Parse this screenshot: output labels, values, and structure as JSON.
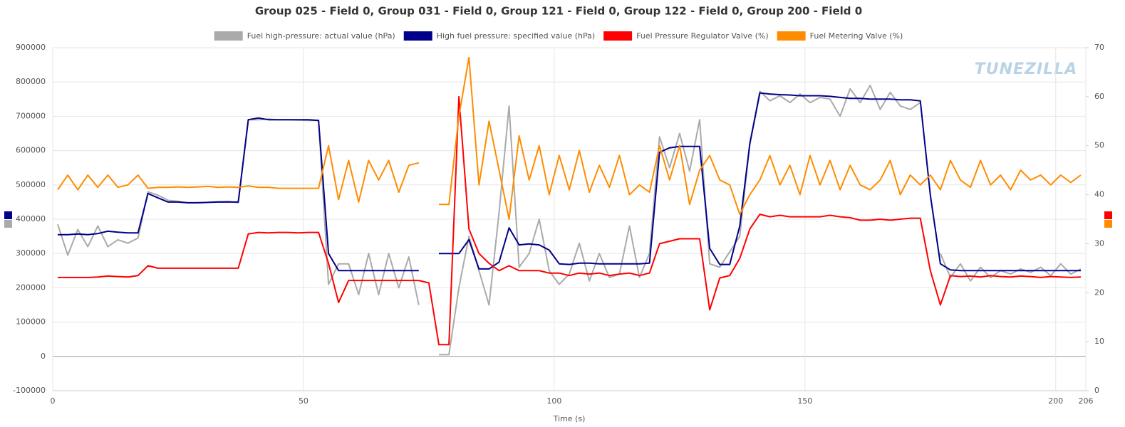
{
  "chart_data": {
    "type": "line",
    "title": "Group 025 - Field 0, Group 031 - Field 0, Group 121 - Field 0, Group 122 - Field 0, Group 200 - Field 0",
    "x_label": "Time (s)",
    "watermark": "TUNEZILLA",
    "xlim": [
      0,
      206
    ],
    "xticks": [
      0,
      50,
      100,
      150,
      200,
      206
    ],
    "ylim": [
      -100000,
      900000
    ],
    "yticks": [
      -100000,
      0,
      100000,
      200000,
      300000,
      400000,
      500000,
      600000,
      700000,
      800000,
      900000
    ],
    "y2lim": [
      0,
      70
    ],
    "y2ticks": [
      0,
      10,
      20,
      30,
      40,
      50,
      60,
      70
    ],
    "grid": true,
    "legend": "top",
    "x": [
      1,
      3,
      5,
      7,
      9,
      11,
      13,
      15,
      17,
      19,
      21,
      23,
      25,
      27,
      29,
      31,
      33,
      35,
      37,
      39,
      41,
      43,
      45,
      47,
      49,
      51,
      53,
      55,
      57,
      59,
      61,
      63,
      65,
      67,
      69,
      71,
      73,
      75,
      77,
      79,
      81,
      83,
      85,
      87,
      89,
      91,
      93,
      95,
      97,
      99,
      101,
      103,
      105,
      107,
      109,
      111,
      113,
      115,
      117,
      119,
      121,
      123,
      125,
      127,
      129,
      131,
      133,
      135,
      137,
      139,
      141,
      143,
      145,
      147,
      149,
      151,
      153,
      155,
      157,
      159,
      161,
      163,
      165,
      167,
      169,
      171,
      173,
      175,
      177,
      179,
      181,
      183,
      185,
      187,
      189,
      191,
      193,
      195,
      197,
      199,
      201,
      203,
      205
    ],
    "series": [
      {
        "name": "Fuel high-pressure: actual value (hPa)",
        "color": "#aaaaaa",
        "axis": "y",
        "values": [
          385000,
          295000,
          370000,
          320000,
          380000,
          320000,
          340000,
          330000,
          345000,
          480000,
          470000,
          455000,
          452000,
          447000,
          448000,
          449000,
          451000,
          452000,
          448000,
          690000,
          690000,
          692000,
          690000,
          690000,
          689000,
          688000,
          688000,
          210000,
          270000,
          270000,
          180000,
          300000,
          180000,
          300000,
          200000,
          290000,
          150000,
          null,
          5000,
          5000,
          200000,
          350000,
          250000,
          150000,
          420000,
          730000,
          260000,
          300000,
          400000,
          250000,
          210000,
          240000,
          330000,
          220000,
          300000,
          230000,
          240000,
          380000,
          230000,
          300000,
          640000,
          550000,
          650000,
          540000,
          690000,
          270000,
          260000,
          305000,
          350000,
          620000,
          773000,
          745000,
          760000,
          740000,
          765000,
          740000,
          755000,
          750000,
          700000,
          780000,
          740000,
          790000,
          720000,
          770000,
          730000,
          720000,
          740000,
          null,
          300000,
          230000,
          270000,
          220000,
          260000,
          230000,
          250000,
          240000,
          255000,
          245000,
          260000,
          235000,
          270000,
          240000,
          255000
        ]
      },
      {
        "name": "High fuel pressure: specified value (hPa)",
        "color": "#00008b",
        "axis": "y",
        "values": [
          355000,
          355000,
          357000,
          355000,
          358000,
          365000,
          362000,
          360000,
          360000,
          475000,
          462000,
          450000,
          450000,
          448000,
          448000,
          449000,
          450000,
          450000,
          450000,
          690000,
          695000,
          690000,
          690000,
          690000,
          690000,
          690000,
          688000,
          300000,
          250000,
          250000,
          250000,
          250000,
          250000,
          250000,
          250000,
          250000,
          250000,
          null,
          300000,
          300000,
          300000,
          340000,
          255000,
          255000,
          275000,
          375000,
          325000,
          328000,
          325000,
          310000,
          270000,
          268000,
          272000,
          272000,
          270000,
          270000,
          270000,
          270000,
          270000,
          272000,
          595000,
          608000,
          612000,
          612000,
          612000,
          315000,
          268000,
          268000,
          380000,
          620000,
          768000,
          765000,
          763000,
          762000,
          760000,
          760000,
          760000,
          758000,
          755000,
          752000,
          752000,
          750000,
          750000,
          750000,
          748000,
          748000,
          745000,
          470000,
          270000,
          252000,
          250000,
          250000,
          250000,
          250000,
          250000,
          250000,
          250000,
          250000,
          250000,
          250000,
          250000,
          250000,
          250000
        ]
      },
      {
        "name": "Fuel Pressure Regulator Valve (%)",
        "color": "#ff0000",
        "axis": "y2",
        "values": [
          23.1,
          23.1,
          23.1,
          23.1,
          23.2,
          23.4,
          23.3,
          23.2,
          23.5,
          25.5,
          25.0,
          25.0,
          25.0,
          25.0,
          25.0,
          25.0,
          25.0,
          25.0,
          25.0,
          32.0,
          32.3,
          32.2,
          32.3,
          32.3,
          32.2,
          32.3,
          32.3,
          26,
          18,
          22.5,
          22.5,
          22.5,
          22.5,
          22.5,
          22.5,
          22.5,
          22.5,
          22,
          9.4,
          9.4,
          60,
          33,
          28,
          26,
          24.5,
          25.5,
          24.5,
          24.5,
          24.5,
          24,
          24,
          23.5,
          24,
          23.8,
          24,
          23.5,
          23.8,
          24,
          23.5,
          24,
          30,
          30.5,
          31,
          31,
          31,
          16.5,
          23,
          23.5,
          27,
          33,
          36,
          35.5,
          35.8,
          35.5,
          35.5,
          35.5,
          35.5,
          35.8,
          35.5,
          35.3,
          34.8,
          34.8,
          35,
          34.8,
          35,
          35.2,
          35.2,
          24.5,
          17.5,
          23.5,
          23.3,
          23.4,
          23.2,
          23.5,
          23.3,
          23.2,
          23.4,
          23.3,
          23.1,
          23.3,
          23.2,
          23.1,
          23.2
        ]
      },
      {
        "name": "Fuel Metering Valve (%)",
        "color": "#ff8c00",
        "axis": "y2",
        "values": [
          41,
          44,
          41,
          44,
          41.5,
          44,
          41.5,
          42,
          44,
          41.3,
          41.5,
          41.5,
          41.6,
          41.5,
          41.6,
          41.7,
          41.5,
          41.6,
          41.5,
          41.8,
          41.5,
          41.5,
          41.3,
          41.3,
          41.3,
          41.3,
          41.3,
          50,
          39,
          47,
          38.5,
          47,
          43,
          47,
          40.5,
          46,
          46.5,
          null,
          38,
          38,
          56,
          68,
          42,
          55,
          45,
          35,
          52,
          43,
          50,
          40,
          48,
          41,
          49,
          40.5,
          46,
          41.5,
          48,
          40,
          42,
          40.5,
          50,
          43,
          50,
          38,
          45,
          48,
          43,
          42,
          36,
          40,
          43,
          48,
          42,
          46,
          40,
          48,
          42,
          47,
          41,
          46,
          42,
          41,
          43,
          47,
          40,
          44,
          42,
          44,
          41,
          47,
          43,
          41.5,
          47,
          42,
          44,
          41,
          45,
          43,
          44,
          42,
          44,
          42.5,
          44
        ]
      }
    ]
  }
}
